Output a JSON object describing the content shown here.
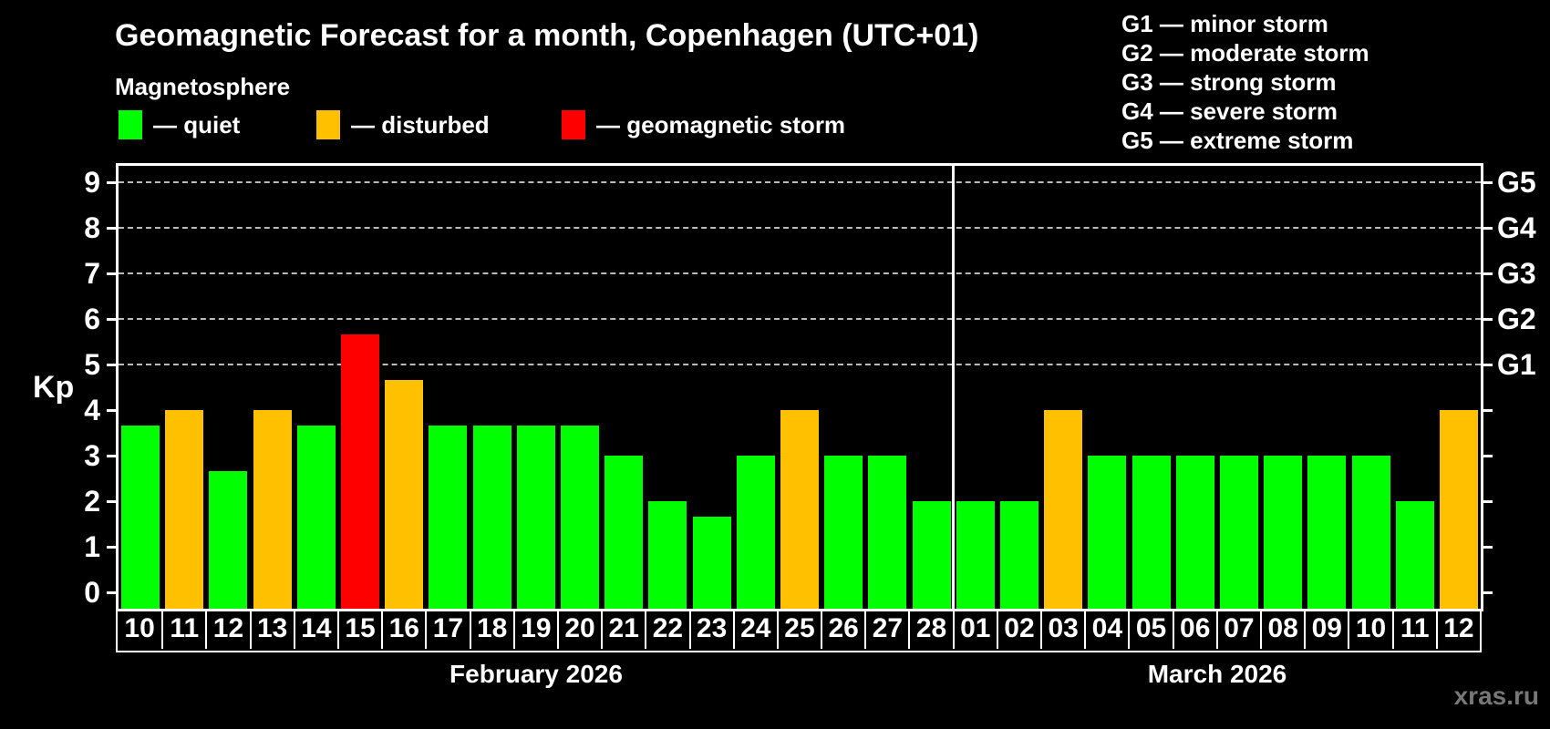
{
  "title": "Geomagnetic Forecast for a month, Copenhagen (UTC+01)",
  "subtitle": "Magnetosphere",
  "legend": {
    "items": [
      {
        "status": "quiet",
        "label": "— quiet",
        "color": "#00ff00"
      },
      {
        "status": "disturbed",
        "label": "— disturbed",
        "color": "#ffc000"
      },
      {
        "status": "storm",
        "label": "— geomagnetic storm",
        "color": "#ff0000"
      }
    ]
  },
  "g_legend": {
    "lines": [
      "G1 — minor storm",
      "G2 — moderate storm",
      "G3 — strong storm",
      "G4 — severe storm",
      "G5 — extreme storm"
    ]
  },
  "watermark": "xras.ru",
  "chart_data": {
    "type": "bar",
    "ylabel": "Kp",
    "ylim": [
      0,
      9
    ],
    "yticks": [
      0,
      1,
      2,
      3,
      4,
      5,
      6,
      7,
      8,
      9
    ],
    "grid": "horizontal dashed lines at Kp 5–9 only",
    "legend_position": "top-left (status colors) and top-right (G-scale)",
    "right_axis": [
      {
        "label": "G1",
        "kp": 5
      },
      {
        "label": "G2",
        "kp": 6
      },
      {
        "label": "G3",
        "kp": 7
      },
      {
        "label": "G4",
        "kp": 8
      },
      {
        "label": "G5",
        "kp": 9
      }
    ],
    "status_colors": {
      "quiet": "#00ff00",
      "disturbed": "#ffc000",
      "storm": "#ff0000"
    },
    "months": [
      {
        "label": "February 2026",
        "count": 19
      },
      {
        "label": "March 2026",
        "count": 12
      }
    ],
    "categories": [
      "10",
      "11",
      "12",
      "13",
      "14",
      "15",
      "16",
      "17",
      "18",
      "19",
      "20",
      "21",
      "22",
      "23",
      "24",
      "25",
      "26",
      "27",
      "28",
      "01",
      "02",
      "03",
      "04",
      "05",
      "06",
      "07",
      "08",
      "09",
      "10",
      "11",
      "12"
    ],
    "values": [
      3.67,
      4,
      2.67,
      4,
      3.67,
      5.67,
      4.67,
      3.67,
      3.67,
      3.67,
      3.67,
      3,
      2,
      1.67,
      3,
      4,
      3,
      3,
      2,
      2,
      2,
      4,
      3,
      3,
      3,
      3,
      3,
      3,
      3,
      2,
      4
    ],
    "statuses": [
      "quiet",
      "disturbed",
      "quiet",
      "disturbed",
      "quiet",
      "storm",
      "disturbed",
      "quiet",
      "quiet",
      "quiet",
      "quiet",
      "quiet",
      "quiet",
      "quiet",
      "quiet",
      "disturbed",
      "quiet",
      "quiet",
      "quiet",
      "quiet",
      "quiet",
      "disturbed",
      "quiet",
      "quiet",
      "quiet",
      "quiet",
      "quiet",
      "quiet",
      "quiet",
      "quiet",
      "disturbed"
    ]
  }
}
